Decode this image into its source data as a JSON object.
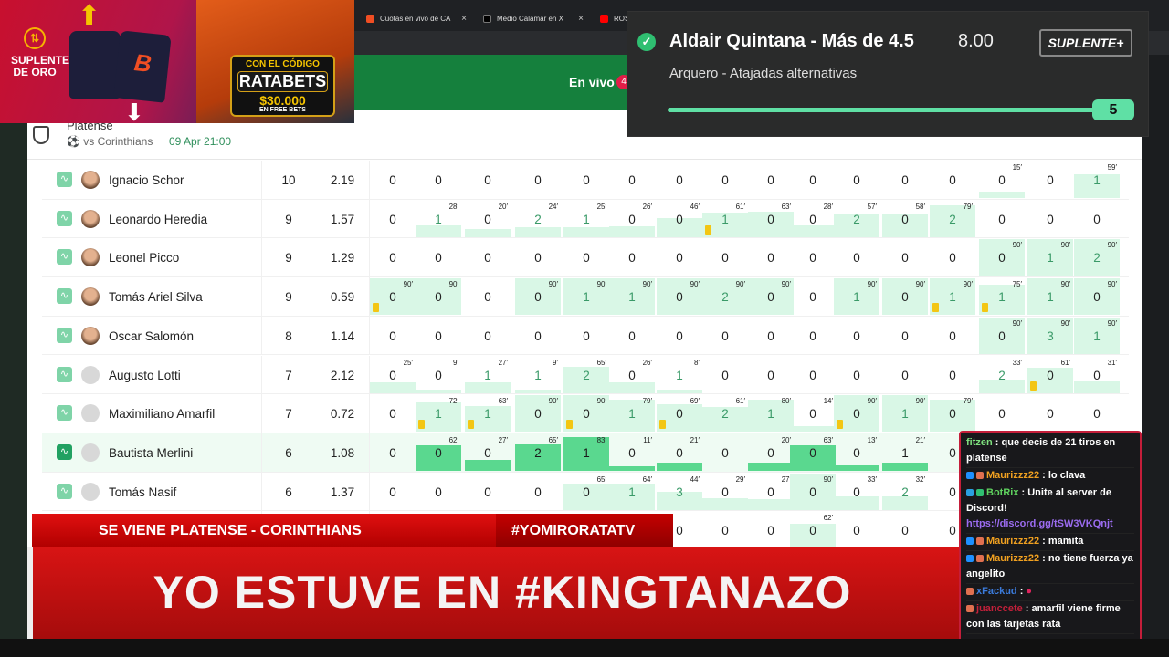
{
  "browser": {
    "tabs": [
      {
        "label": "Cuotas en vivo de CA",
        "icon": "betano-icon",
        "color": "#f04e23"
      },
      {
        "label": "Medio Calamar en X",
        "icon": "x-icon",
        "color": "#000000"
      },
      {
        "label": "ROS",
        "icon": "youtube-icon",
        "color": "#ff0000"
      }
    ],
    "close": "×"
  },
  "site": {
    "live_label": "En vivo",
    "live_count": "4",
    "accent": "#15803d"
  },
  "match": {
    "team": "Platense",
    "opponent": "vs Corinthians",
    "date": "09 Apr 21:00"
  },
  "promo": {
    "brand": "SUPLENTE DE ORO",
    "code_intro": "CON EL CÓDIGO",
    "code": "RATABETS",
    "amount": "$30.000",
    "amount_note": "EN FREE BETS"
  },
  "bet": {
    "title": "Aldair Quintana - Más de 4.5",
    "odds": "8.00",
    "subtitle": "Arquero - Atajadas alternativas",
    "badge": "SUPLENTE+",
    "progress": 5,
    "progress_target": 5,
    "status": "won"
  },
  "players": [
    {
      "name": "Ignacio Schor",
      "rating": "10",
      "avg": "2.19",
      "photo": true,
      "cells": [
        [
          0
        ],
        [
          0
        ],
        [
          0
        ],
        [
          0
        ],
        [
          0
        ],
        [
          0
        ],
        [
          0
        ],
        [
          0
        ],
        [
          0
        ],
        [
          0
        ],
        [
          0
        ],
        [
          0
        ],
        [
          0
        ],
        [
          0,
          15
        ],
        [
          0
        ],
        [
          1,
          59
        ]
      ]
    },
    {
      "name": "Leonardo Heredia",
      "rating": "9",
      "avg": "1.57",
      "photo": true,
      "cells": [
        [
          0
        ],
        [
          1,
          28
        ],
        [
          0,
          20
        ],
        [
          2,
          24
        ],
        [
          1,
          25
        ],
        [
          0,
          26
        ],
        [
          0,
          46
        ],
        [
          1,
          61,
          "card"
        ],
        [
          0,
          63
        ],
        [
          0,
          28
        ],
        [
          2,
          57
        ],
        [
          0,
          58
        ],
        [
          2,
          79
        ],
        [
          0
        ],
        [
          0
        ],
        [
          0
        ]
      ]
    },
    {
      "name": "Leonel Picco",
      "rating": "9",
      "avg": "1.29",
      "photo": true,
      "cells": [
        [
          0
        ],
        [
          0
        ],
        [
          0
        ],
        [
          0
        ],
        [
          0
        ],
        [
          0
        ],
        [
          0
        ],
        [
          0
        ],
        [
          0
        ],
        [
          0
        ],
        [
          0
        ],
        [
          0
        ],
        [
          0
        ],
        [
          0,
          90
        ],
        [
          1,
          90
        ],
        [
          2,
          90
        ]
      ]
    },
    {
      "name": "Tomás Ariel Silva",
      "rating": "9",
      "avg": "0.59",
      "photo": true,
      "cells": [
        [
          0,
          90,
          "card"
        ],
        [
          0,
          90
        ],
        [
          0
        ],
        [
          0,
          90
        ],
        [
          1,
          90
        ],
        [
          1,
          90
        ],
        [
          0,
          90
        ],
        [
          2,
          90
        ],
        [
          0,
          90
        ],
        [
          0
        ],
        [
          1,
          90
        ],
        [
          0,
          90
        ],
        [
          1,
          90,
          "card"
        ],
        [
          1,
          75,
          "card"
        ],
        [
          1,
          90
        ],
        [
          0,
          90
        ]
      ]
    },
    {
      "name": "Oscar Salomón",
      "rating": "8",
      "avg": "1.14",
      "photo": true,
      "cells": [
        [
          0
        ],
        [
          0
        ],
        [
          0
        ],
        [
          0
        ],
        [
          0
        ],
        [
          0
        ],
        [
          0
        ],
        [
          0
        ],
        [
          0
        ],
        [
          0
        ],
        [
          0
        ],
        [
          0
        ],
        [
          0
        ],
        [
          0,
          90
        ],
        [
          3,
          90
        ],
        [
          1,
          90
        ]
      ]
    },
    {
      "name": "Augusto Lotti",
      "rating": "7",
      "avg": "2.12",
      "photo": false,
      "cells": [
        [
          0,
          25
        ],
        [
          0,
          9
        ],
        [
          1,
          27
        ],
        [
          1,
          9
        ],
        [
          2,
          65
        ],
        [
          0,
          26
        ],
        [
          1,
          8
        ],
        [
          0
        ],
        [
          0
        ],
        [
          0
        ],
        [
          0
        ],
        [
          0
        ],
        [
          0
        ],
        [
          2,
          33
        ],
        [
          0,
          61,
          "card"
        ],
        [
          0,
          31
        ]
      ]
    },
    {
      "name": "Maximiliano Amarfil",
      "rating": "7",
      "avg": "0.72",
      "photo": false,
      "cells": [
        [
          0
        ],
        [
          1,
          72,
          "card"
        ],
        [
          1,
          63,
          "card"
        ],
        [
          0,
          90
        ],
        [
          0,
          90,
          "card"
        ],
        [
          1,
          79
        ],
        [
          0,
          69,
          "card"
        ],
        [
          2,
          61
        ],
        [
          1,
          80
        ],
        [
          0,
          14
        ],
        [
          0,
          90,
          "card"
        ],
        [
          1,
          90
        ],
        [
          0,
          79
        ],
        [
          0
        ],
        [
          0
        ],
        [
          0
        ]
      ]
    },
    {
      "name": "Bautista Merlini",
      "rating": "6",
      "avg": "1.08",
      "photo": false,
      "highlighted": true,
      "cells": [
        [
          0
        ],
        [
          0,
          62
        ],
        [
          0,
          27
        ],
        [
          2,
          65
        ],
        [
          1,
          83
        ],
        [
          0,
          11
        ],
        [
          0,
          21
        ],
        [
          0
        ],
        [
          0,
          20
        ],
        [
          0,
          63
        ],
        [
          0,
          13
        ],
        [
          1,
          21
        ],
        [
          0
        ]
      ]
    },
    {
      "name": "Tomás Nasif",
      "rating": "6",
      "avg": "1.37",
      "photo": false,
      "cells": [
        [
          0
        ],
        [
          0
        ],
        [
          0
        ],
        [
          0
        ],
        [
          0,
          65
        ],
        [
          1,
          64
        ],
        [
          3,
          44
        ],
        [
          0,
          29
        ],
        [
          0,
          27
        ],
        [
          0,
          90
        ],
        [
          0,
          33
        ],
        [
          2,
          32
        ],
        [
          0
        ]
      ]
    },
    {
      "name": "",
      "rating": "",
      "avg": "",
      "photo": false,
      "cells": [
        [
          null
        ],
        [
          null
        ],
        [
          null
        ],
        [
          null
        ],
        [
          null
        ],
        [
          null
        ],
        [
          0
        ],
        [
          0
        ],
        [
          0
        ],
        [
          0,
          62
        ],
        [
          0
        ],
        [
          0
        ],
        [
          0
        ]
      ]
    }
  ],
  "overlay": {
    "ticker_left": "SE VIENE PLATENSE - CORINTHIANS",
    "ticker_right": "#YOMIRORATATV",
    "headline": "YO ESTUVE EN #KINGTANAZO"
  },
  "chat": [
    {
      "user": "fitzen",
      "color": "#7ee07e",
      "text": "que decis de 21 tiros en platense"
    },
    {
      "user": "Maurizzz22",
      "color": "#f0a020",
      "text": "lo clava",
      "badges": [
        "#1e90ff",
        "#e07050"
      ]
    },
    {
      "user": "BotRix",
      "color": "#5fd35f",
      "text": "Unite al server de Discord!",
      "link": "https://discord.gg/tSW3VKQnjt",
      "badges": [
        "#2aa0e0",
        "#2fbf71"
      ]
    },
    {
      "user": "Maurizzz22",
      "color": "#f0a020",
      "text": "mamita",
      "badges": [
        "#1e90ff",
        "#e07050"
      ]
    },
    {
      "user": "Maurizzz22",
      "color": "#f0a020",
      "text": "no tiene fuerza ya angelito",
      "badges": [
        "#1e90ff",
        "#e07050"
      ]
    },
    {
      "user": "xFackud",
      "color": "#3b7bdc",
      "text": "",
      "emote": "heart-emote",
      "badges": [
        "#e07050"
      ]
    },
    {
      "user": "juanccete",
      "color": "#c4203a",
      "text": "amarfil viene firme con las tarjetas rata",
      "badges": [
        "#e07050"
      ]
    }
  ]
}
